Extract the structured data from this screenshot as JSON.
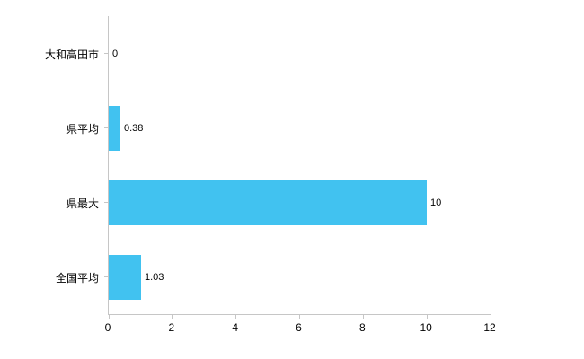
{
  "chart_data": {
    "type": "bar",
    "orientation": "horizontal",
    "title": "",
    "xlabel": "",
    "ylabel": "",
    "categories": [
      "大和高田市",
      "県平均",
      "県最大",
      "全国平均"
    ],
    "values": [
      0,
      0.38,
      10,
      1.03
    ],
    "value_labels": [
      "0",
      "0.38",
      "10",
      "1.03"
    ],
    "xlim": [
      0,
      12
    ],
    "x_ticks": [
      "0",
      "2",
      "4",
      "6",
      "8",
      "10",
      "12"
    ],
    "grid": false,
    "legend": false,
    "colors": {
      "bar": "#41c2f0",
      "axis": "#c6c6c6",
      "text": "#000000",
      "background": "#ffffff"
    }
  }
}
